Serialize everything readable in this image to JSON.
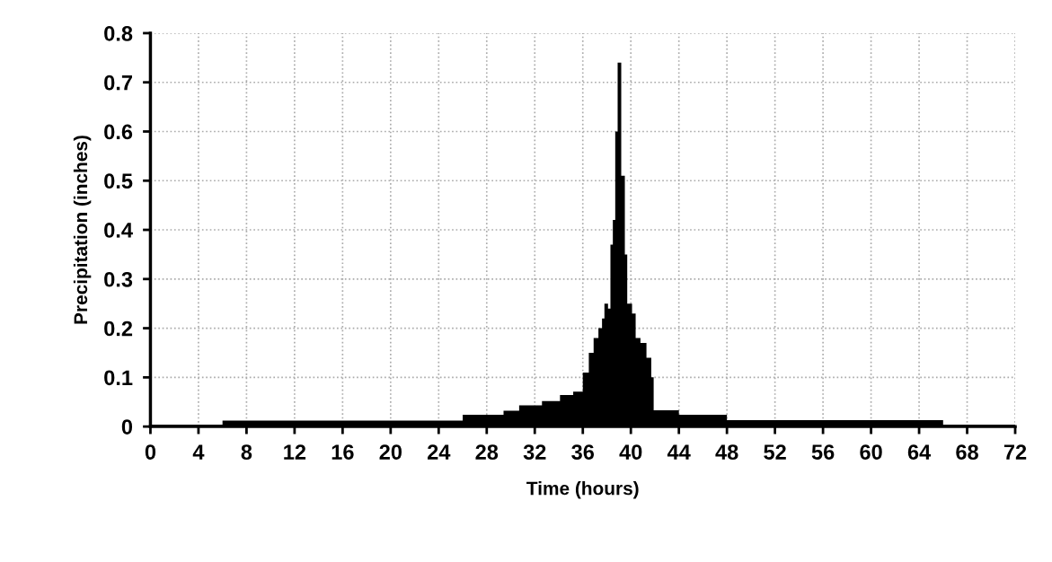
{
  "chart_data": {
    "type": "area",
    "xlabel": "Time (hours)",
    "ylabel": "Precipitation (inches)",
    "x": [
      0,
      6,
      26,
      29.4,
      30.7,
      32.6,
      34.1,
      35.2,
      36.0,
      36.5,
      36.9,
      37.3,
      37.6,
      37.8,
      38.1,
      38.3,
      38.5,
      38.7,
      38.9,
      39.2,
      39.5,
      39.7,
      40.1,
      40.4,
      40.8,
      41.3,
      41.7,
      41.9,
      44,
      48,
      66,
      72
    ],
    "series": [
      {
        "color": "#000000",
        "values": [
          0.004,
          0.012,
          0.024,
          0.032,
          0.043,
          0.052,
          0.064,
          0.071,
          0.11,
          0.15,
          0.18,
          0.2,
          0.22,
          0.25,
          0.24,
          0.37,
          0.42,
          0.6,
          0.74,
          0.51,
          0.35,
          0.25,
          0.23,
          0.18,
          0.17,
          0.14,
          0.1,
          0.033,
          0.024,
          0.013,
          0.004,
          0.004
        ]
      }
    ],
    "xlim": [
      0,
      72
    ],
    "xticks": [
      0,
      4,
      8,
      12,
      16,
      20,
      24,
      28,
      32,
      36,
      40,
      44,
      48,
      52,
      56,
      60,
      64,
      68,
      72
    ],
    "ylim": [
      0,
      0.8
    ],
    "yticks": [
      0,
      0.1,
      0.2,
      0.3,
      0.4,
      0.5,
      0.6,
      0.7,
      0.8
    ],
    "grid": true
  }
}
